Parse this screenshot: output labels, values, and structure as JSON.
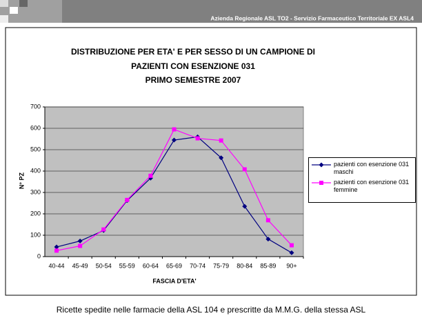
{
  "header": "Azienda Regionale ASL TO2 - Servizio Farmaceutico Territoriale EX ASL4",
  "footer": "Ricette spedite nelle farmacie della ASL 104 e prescritte da M.M.G. della stessa ASL",
  "chart_data": {
    "type": "line",
    "title": [
      "DISTRIBUZIONE PER ETA' E PER SESSO DI UN CAMPIONE DI",
      "PAZIENTI CON ESENZIONE 031",
      "PRIMO SEMESTRE 2007"
    ],
    "x_label": "FASCIA D'ETA'",
    "y_label": "N° PZ",
    "categories": [
      "40-44",
      "45-49",
      "50-54",
      "55-59",
      "60-64",
      "65-69",
      "70-74",
      "75-79",
      "80-84",
      "85-89",
      "90+"
    ],
    "series": [
      {
        "name": "pazienti con esenzione 031 maschi",
        "color": "#000080",
        "marker": "diamond",
        "values": [
          45,
          73,
          122,
          262,
          367,
          545,
          560,
          462,
          235,
          82,
          18
        ]
      },
      {
        "name": "pazienti con esenzione 031 femmine",
        "color": "#ff00ff",
        "marker": "square",
        "values": [
          28,
          50,
          127,
          265,
          378,
          595,
          553,
          543,
          408,
          170,
          53
        ]
      }
    ],
    "ylim": [
      0,
      700
    ],
    "yticks": [
      0,
      100,
      200,
      300,
      400,
      500,
      600,
      700
    ],
    "grid": true,
    "legend": "right"
  }
}
